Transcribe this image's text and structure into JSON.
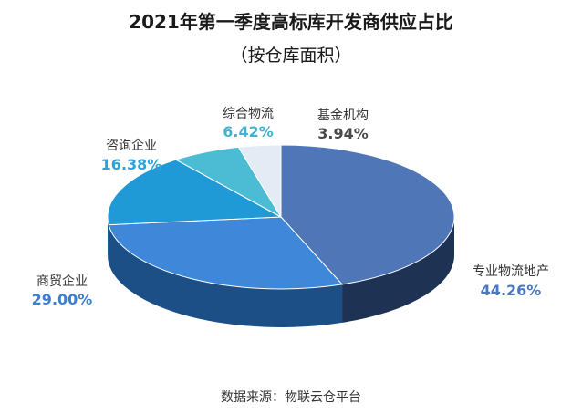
{
  "chart_data": {
    "type": "pie",
    "title": "2021年第一季度高标库开发商供应占比",
    "subtitle": "（按仓库面积）",
    "unit": "%",
    "categories": [
      "专业物流地产",
      "商贸企业",
      "咨询企业",
      "综合物流",
      "基金机构"
    ],
    "values": [
      44.26,
      29.0,
      16.38,
      6.42,
      3.94
    ],
    "value_labels": [
      "44.26%",
      "29.00%",
      "16.38%",
      "6.42%",
      "3.94%"
    ],
    "colors": [
      "#4f76b6",
      "#3f87d8",
      "#1f9ad6",
      "#4cbcd5",
      "#e4ebf5"
    ],
    "side_colors": [
      "#1e3353",
      "#1d4f87",
      "#155f8f",
      "#2f7f95",
      "#9fb0c6"
    ],
    "label_colors": [
      "#4a78c2",
      "#3b7fd0",
      "#2aa3da",
      "#3fb3d3",
      "#4a4a4a"
    ],
    "legend": "none",
    "labels_position": "outside",
    "start_angle_deg": 270,
    "direction": "clockwise",
    "style": "3d"
  },
  "source_text": "数据来源：物联云仓平台"
}
